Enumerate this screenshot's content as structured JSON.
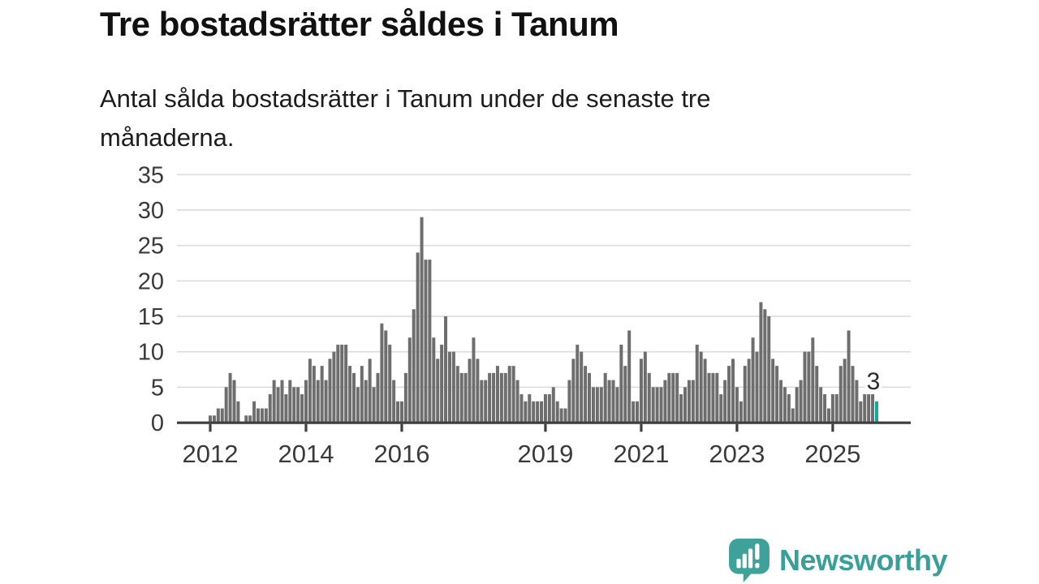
{
  "title": "Tre bostadsrätter såldes i Tanum",
  "subtitle": {
    "lines": [
      "Antal sålda bostadsrätter i Tanum under de senaste tre",
      "månaderna."
    ]
  },
  "chart_data": {
    "type": "bar",
    "title": "Tre bostadsrätter såldes i Tanum",
    "subtitle": "Antal sålda bostadsrätter i Tanum under de senaste tre månaderna.",
    "granularity": "monthly",
    "values": [
      1,
      1,
      2,
      2,
      5,
      7,
      6,
      3,
      0,
      1,
      1,
      3,
      2,
      2,
      2,
      4,
      6,
      5,
      6,
      4,
      6,
      5,
      5,
      4,
      6,
      9,
      8,
      6,
      8,
      6,
      9,
      10,
      11,
      11,
      11,
      8,
      7,
      5,
      8,
      6,
      9,
      5,
      7,
      14,
      13,
      11,
      6,
      3,
      3,
      7,
      12,
      16,
      24,
      29,
      23,
      23,
      12,
      9,
      11,
      15,
      10,
      10,
      8,
      7,
      7,
      9,
      12,
      9,
      6,
      6,
      7,
      7,
      8,
      7,
      7,
      8,
      8,
      6,
      4,
      3,
      4,
      3,
      3,
      3,
      4,
      4,
      5,
      3,
      2,
      2,
      6,
      9,
      11,
      10,
      8,
      7,
      5,
      5,
      5,
      7,
      6,
      6,
      5,
      11,
      8,
      13,
      3,
      3,
      9,
      10,
      7,
      5,
      5,
      5,
      6,
      7,
      7,
      7,
      4,
      5,
      6,
      6,
      11,
      10,
      9,
      7,
      7,
      7,
      4,
      6,
      8,
      9,
      5,
      3,
      8,
      9,
      12,
      10,
      17,
      16,
      15,
      9,
      8,
      6,
      5,
      4,
      2,
      5,
      6,
      10,
      10,
      12,
      8,
      5,
      4,
      2,
      4,
      4,
      8,
      9,
      13,
      8,
      6,
      3,
      4,
      4,
      4,
      3
    ],
    "highlight_last": {
      "value": 3,
      "label": "3"
    },
    "ylim": [
      0,
      35
    ],
    "yticks": [
      0,
      5,
      10,
      15,
      20,
      25,
      30,
      35
    ],
    "xticks": [
      {
        "label": "2012",
        "month_index": 0
      },
      {
        "label": "2014",
        "month_index": 24
      },
      {
        "label": "2016",
        "month_index": 48
      },
      {
        "label": "2019",
        "month_index": 84
      },
      {
        "label": "2021",
        "month_index": 108
      },
      {
        "label": "2023",
        "month_index": 132
      },
      {
        "label": "2025",
        "month_index": 156
      }
    ],
    "grid": true,
    "legend": null,
    "colors": {
      "bar": "#6e6e6e",
      "highlight": "#0fa7a3",
      "grid": "#dcdcdc",
      "axis": "#3f3f3f",
      "tick_label": "#3a3a3a",
      "annotation": "#2b2b2b"
    }
  },
  "footer": {
    "brand": "Newsworthy",
    "logo_icon": "bar-chart-speech-bubble-icon",
    "brand_color": "#38a099"
  }
}
